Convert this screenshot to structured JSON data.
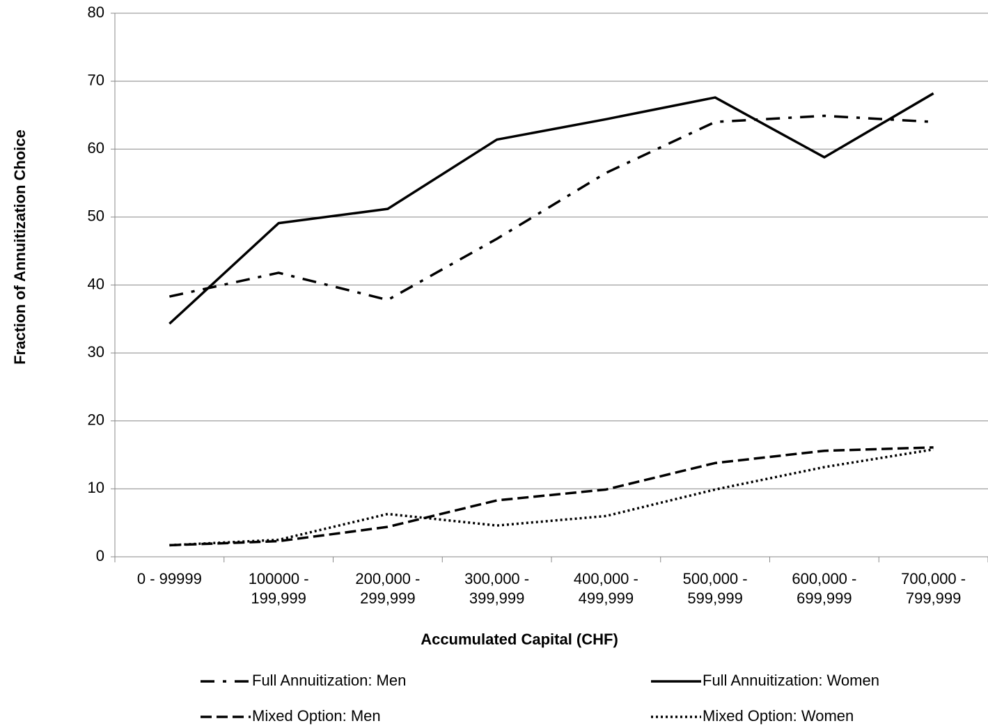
{
  "chart_data": {
    "type": "line",
    "x_label": "Accumulated Capital (CHF)",
    "y_label": "Fraction of Annuitization Choice",
    "categories": [
      "0 - 99999",
      "100000 - 199,999",
      "200,000 - 299,999",
      "300,000 - 399,999",
      "400,000 - 499,999",
      "500,000 - 599,999",
      "600,000 - 699,999",
      "700,000 - 799,999"
    ],
    "series": [
      {
        "name": "Full Annuitization: Men",
        "color": "#000000",
        "dash": "dash-dot",
        "values": [
          38.3,
          41.8,
          37.8,
          46.8,
          56.5,
          64,
          64.9,
          64
        ]
      },
      {
        "name": "Full Annuitization: Women",
        "color": "#000000",
        "dash": "solid",
        "values": [
          34.3,
          49.1,
          51.2,
          61.4,
          64.4,
          67.6,
          58.8,
          68.2
        ]
      },
      {
        "name": "Mixed Option: Men",
        "color": "#000000",
        "dash": "dashed",
        "values": [
          1.7,
          2.3,
          4.4,
          8.3,
          9.9,
          13.8,
          15.6,
          16.1
        ]
      },
      {
        "name": "Mixed Option: Women",
        "color": "#000000",
        "dash": "dotted",
        "values": [
          1.7,
          2.5,
          6.3,
          4.6,
          6.0,
          9.9,
          13.2,
          15.8
        ]
      }
    ],
    "ylim": [
      0,
      80
    ],
    "yticks": [
      0,
      10,
      20,
      30,
      40,
      50,
      60,
      70,
      80
    ],
    "grid": true,
    "legend": "bottom"
  }
}
